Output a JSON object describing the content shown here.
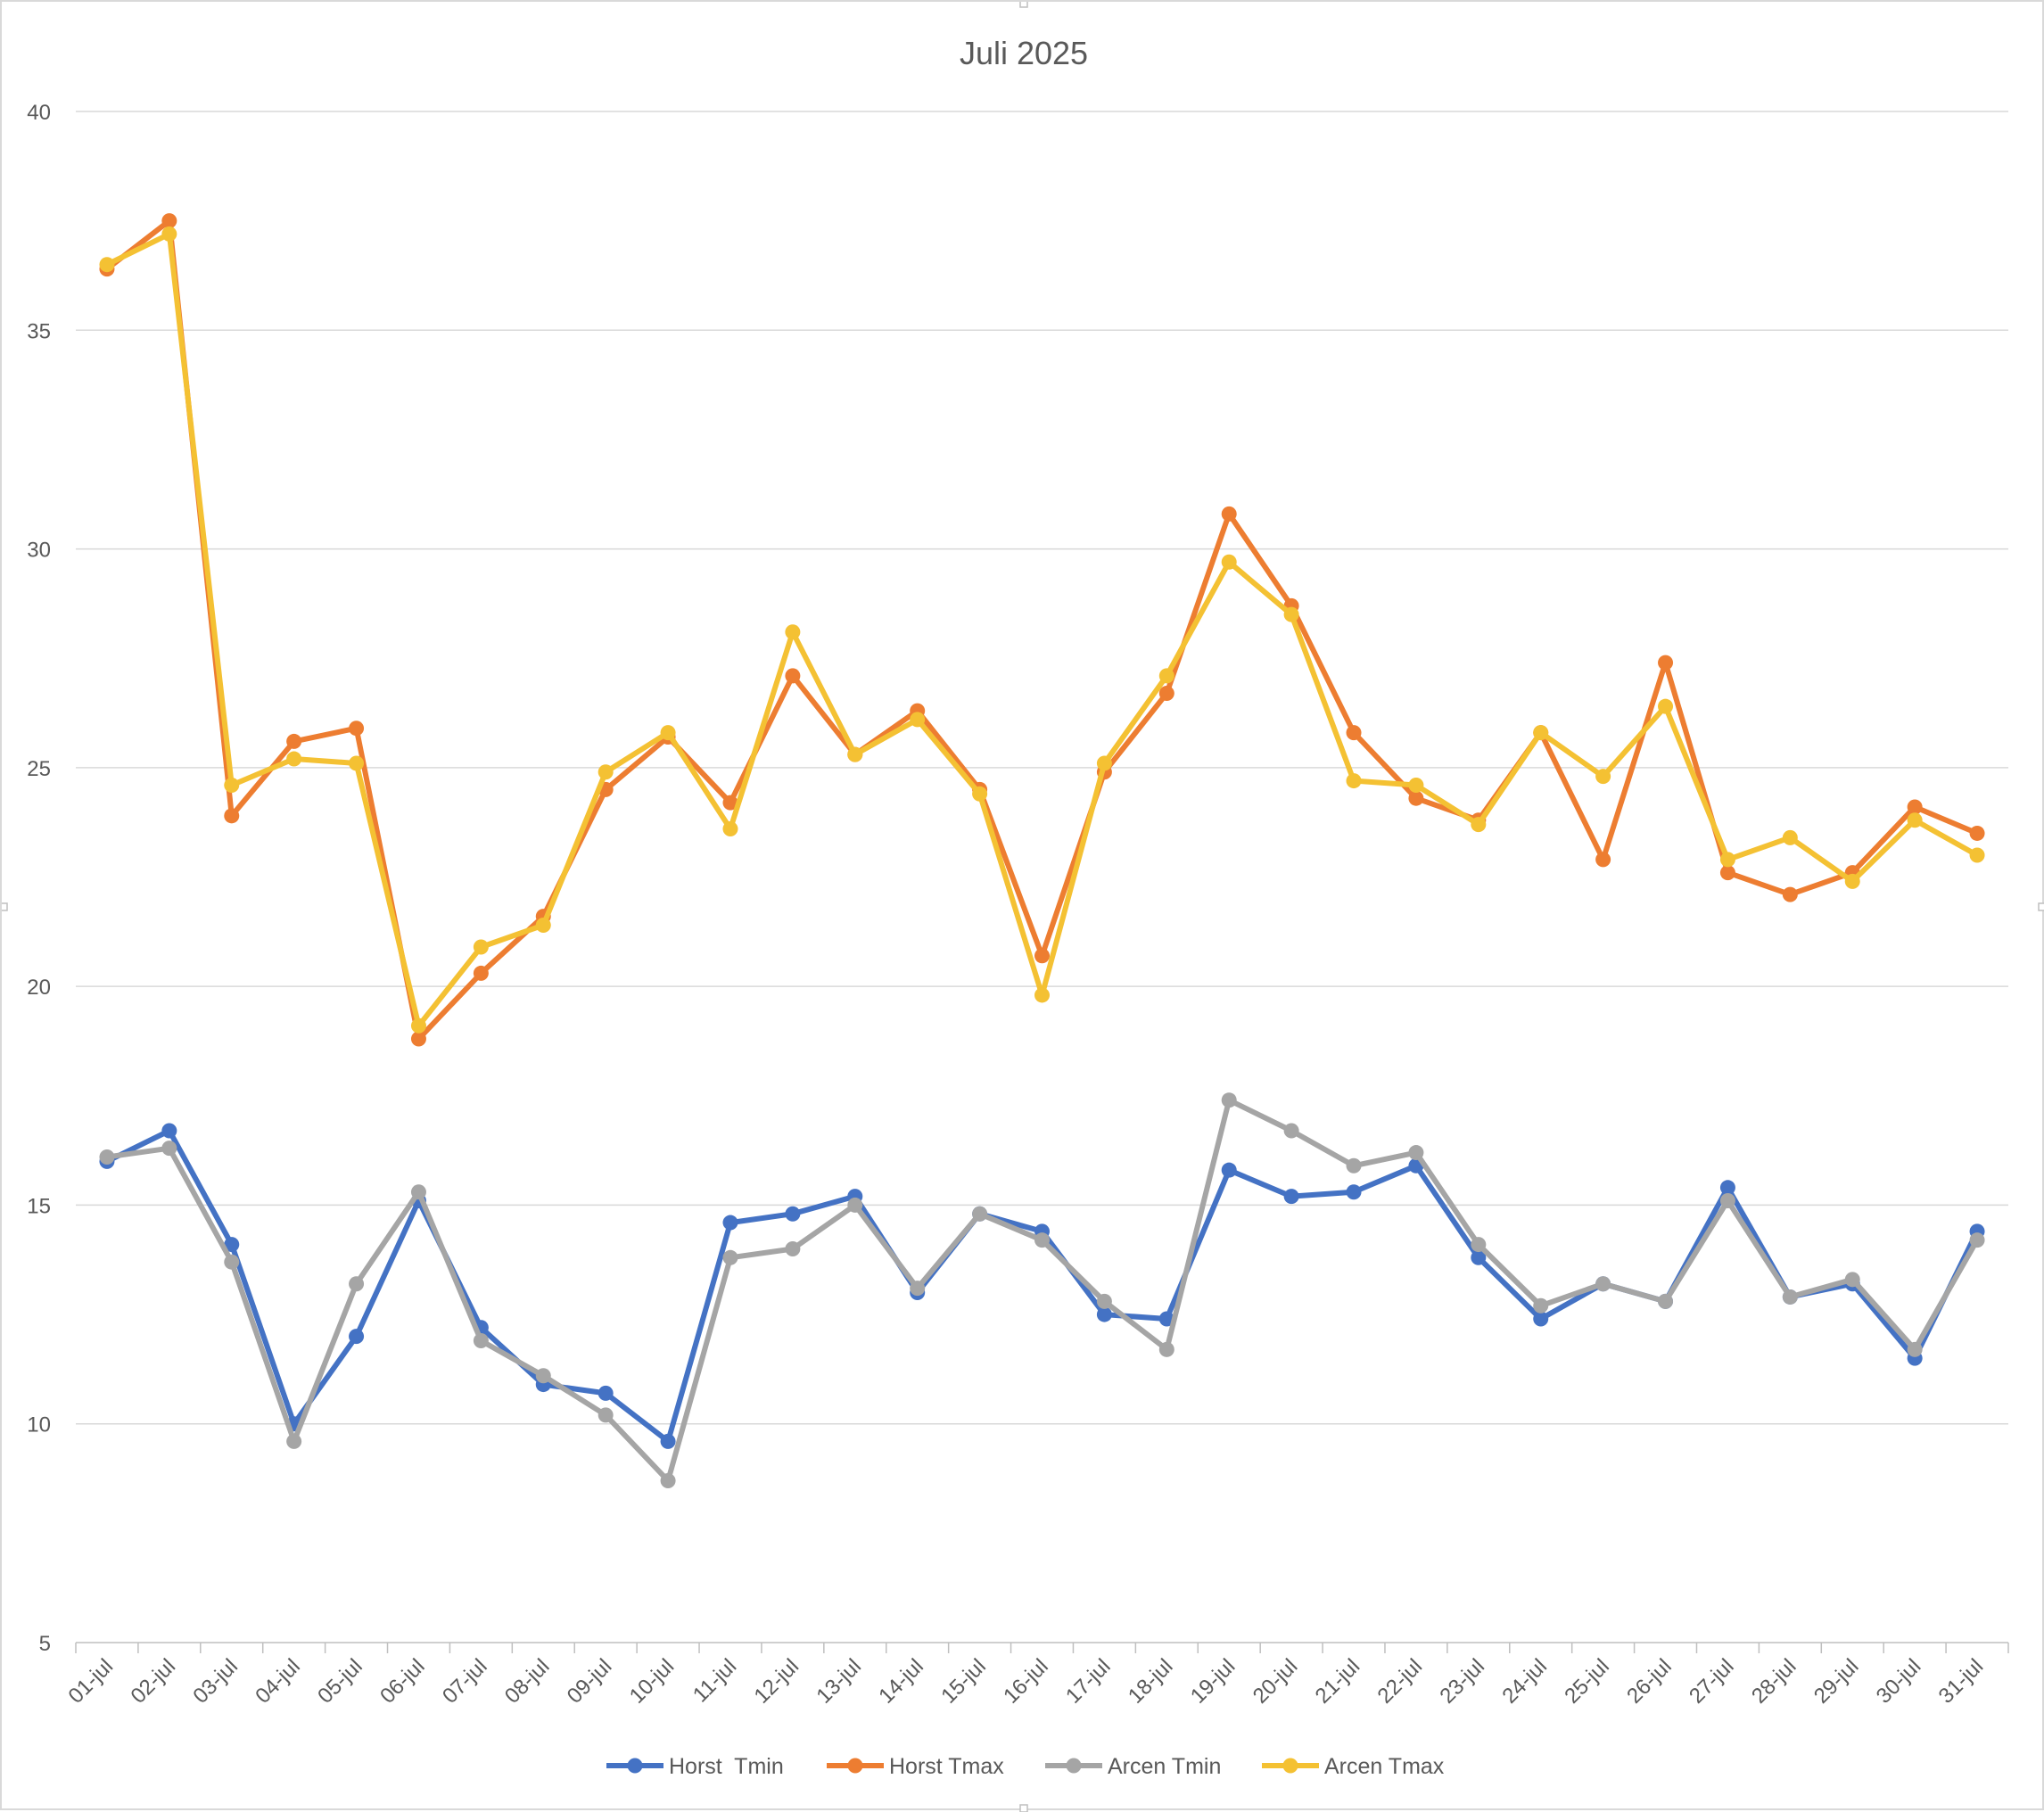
{
  "chart_data": {
    "type": "line",
    "title": "Juli 2025",
    "xlabel": "",
    "ylabel": "",
    "ylim": [
      5,
      40
    ],
    "yticks": [
      5,
      10,
      15,
      20,
      25,
      30,
      35,
      40
    ],
    "grid": true,
    "legend_position": "bottom",
    "categories": [
      "01-jul",
      "02-jul",
      "03-jul",
      "04-jul",
      "05-jul",
      "06-jul",
      "07-jul",
      "08-jul",
      "09-jul",
      "10-jul",
      "11-jul",
      "12-jul",
      "13-jul",
      "14-jul",
      "15-jul",
      "16-jul",
      "17-jul",
      "18-jul",
      "19-jul",
      "20-jul",
      "21-jul",
      "22-jul",
      "23-jul",
      "24-jul",
      "25-jul",
      "26-jul",
      "27-jul",
      "28-jul",
      "29-jul",
      "30-jul",
      "31-jul"
    ],
    "series": [
      {
        "name": "Horst  Tmin",
        "color": "#4472c4",
        "values": [
          16.0,
          16.7,
          14.1,
          10.0,
          12.0,
          15.1,
          12.2,
          10.9,
          10.7,
          9.6,
          14.6,
          14.8,
          15.2,
          13.0,
          14.8,
          14.4,
          12.5,
          12.4,
          15.8,
          15.2,
          15.3,
          15.9,
          13.8,
          12.4,
          13.2,
          12.8,
          15.4,
          12.9,
          13.2,
          11.5,
          14.4
        ]
      },
      {
        "name": "Horst Tmax",
        "color": "#ed7d31",
        "values": [
          36.4,
          37.5,
          23.9,
          25.6,
          25.9,
          18.8,
          20.3,
          21.6,
          24.5,
          25.7,
          24.2,
          27.1,
          25.3,
          26.3,
          24.5,
          20.7,
          24.9,
          26.7,
          30.8,
          28.7,
          25.8,
          24.3,
          23.8,
          25.8,
          22.9,
          27.4,
          22.6,
          22.1,
          22.6,
          24.1,
          23.5
        ]
      },
      {
        "name": "Arcen Tmin",
        "color": "#a5a5a5",
        "values": [
          16.1,
          16.3,
          13.7,
          9.6,
          13.2,
          15.3,
          11.9,
          11.1,
          10.2,
          8.7,
          13.8,
          14.0,
          15.0,
          13.1,
          14.8,
          14.2,
          12.8,
          11.7,
          17.4,
          16.7,
          15.9,
          16.2,
          14.1,
          12.7,
          13.2,
          12.8,
          15.1,
          12.9,
          13.3,
          11.7,
          14.2
        ]
      },
      {
        "name": "Arcen Tmax",
        "color": "#f4c133",
        "values": [
          36.5,
          37.2,
          24.6,
          25.2,
          25.1,
          19.1,
          20.9,
          21.4,
          24.9,
          25.8,
          23.6,
          28.1,
          25.3,
          26.1,
          24.4,
          19.8,
          25.1,
          27.1,
          29.7,
          28.5,
          24.7,
          24.6,
          23.7,
          25.8,
          24.8,
          26.4,
          22.9,
          23.4,
          22.4,
          23.8,
          23.0
        ]
      }
    ]
  }
}
